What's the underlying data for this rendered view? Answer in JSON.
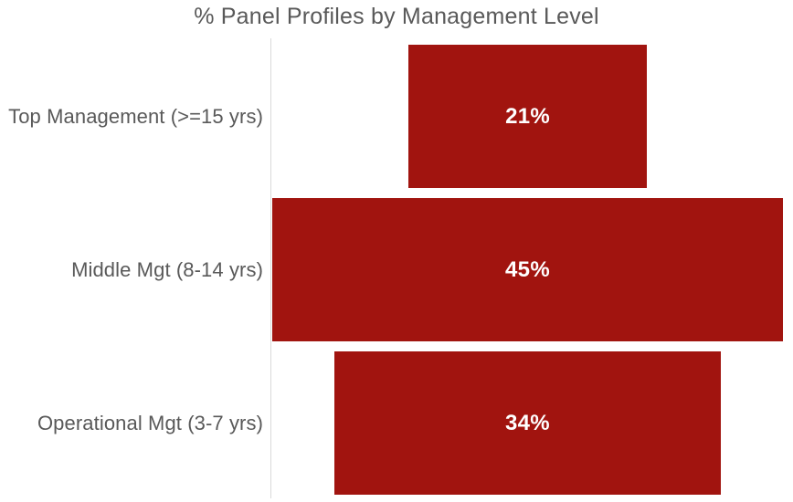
{
  "chart_data": {
    "type": "bar",
    "subtype": "funnel-horizontal-centered",
    "title": "% Panel Profiles by Management Level",
    "categories": [
      "Top Management (>=15 yrs)",
      "Middle Mgt (8-14 yrs)",
      "Operational Mgt (3-7 yrs)"
    ],
    "values": [
      21,
      45,
      34
    ],
    "value_labels": [
      "21%",
      "45%",
      "34%"
    ],
    "unit": "%",
    "max_value": 45,
    "xlabel": "",
    "ylabel": "",
    "legend": "none",
    "gridlines": false,
    "axis_range": [
      0,
      45
    ],
    "colors": {
      "bar": "#A1140F",
      "title_text": "#595959",
      "category_text": "#595959",
      "value_text": "#FFFFFF",
      "axis_line": "#D9D9D9",
      "background": "#FFFFFF"
    }
  }
}
